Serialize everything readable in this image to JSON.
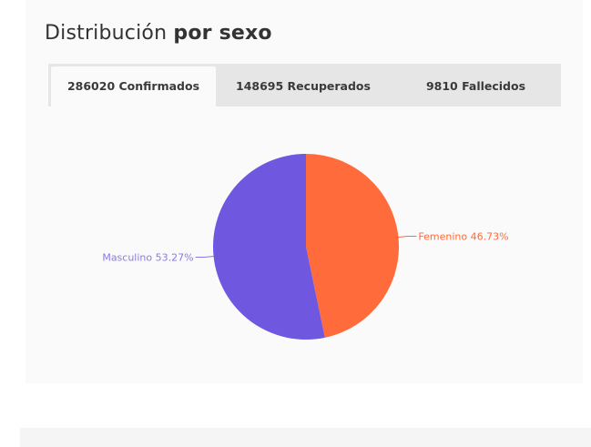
{
  "section": {
    "title_regular": "Distribución",
    "title_bold": "por sexo"
  },
  "tabs": [
    {
      "label": "286020 Confirmados",
      "active": true
    },
    {
      "label": "148695 Recuperados",
      "active": false
    },
    {
      "label": "9810 Fallecidos",
      "active": false
    }
  ],
  "chart_data": {
    "type": "pie",
    "title": "",
    "slices": [
      {
        "label": "Femenino 46.73%",
        "category": "Femenino",
        "value": 46.73,
        "color": "#ff6b3b"
      },
      {
        "label": "Masculino 53.27%",
        "category": "Masculino",
        "value": 53.27,
        "color": "#6f57df"
      }
    ],
    "start_angle_deg": 0,
    "direction": "clockwise",
    "label_colors": {
      "Femenino": "#ff6b3b",
      "Masculino": "#8b78e6"
    }
  }
}
